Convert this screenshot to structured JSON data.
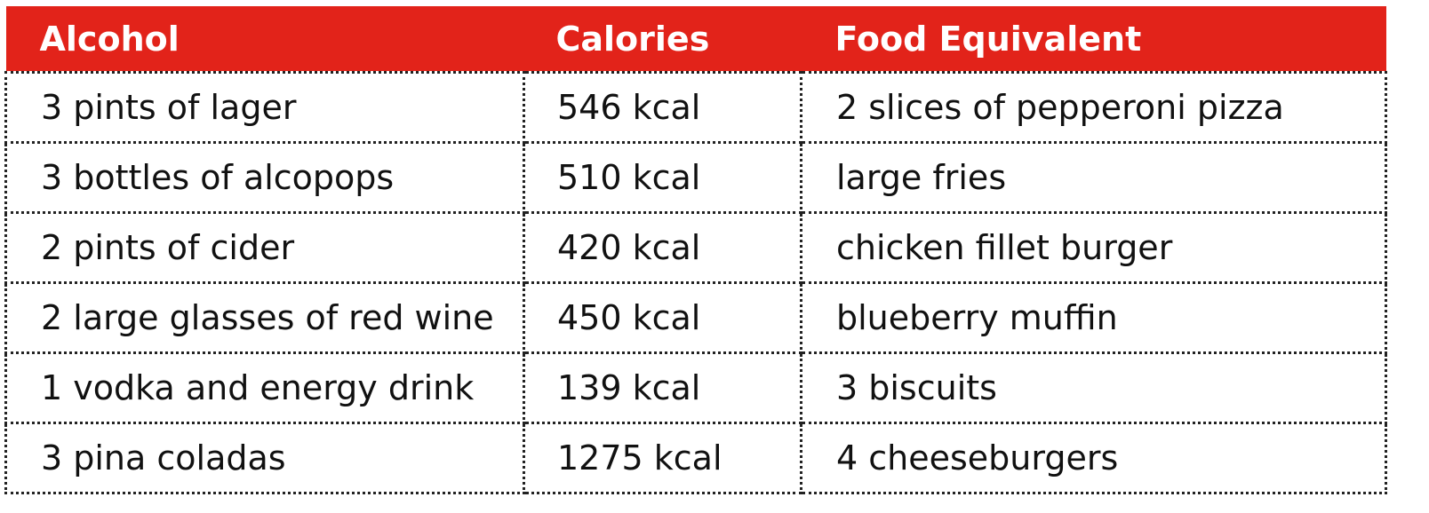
{
  "table": {
    "header": [
      "Alcohol",
      "Calories",
      "Food Equivalent"
    ],
    "rows": [
      [
        "3 pints of lager",
        "546 kcal",
        "2 slices of pepperoni pizza"
      ],
      [
        "3 bottles of alcopops",
        "510 kcal",
        "large fries"
      ],
      [
        "2 pints of cider",
        "420 kcal",
        "chicken fillet burger"
      ],
      [
        "2 large glasses of red wine",
        "450 kcal",
        "blueberry muffin"
      ],
      [
        "1 vodka and energy drink",
        "139 kcal",
        "3 biscuits"
      ],
      [
        "3 pina coladas",
        "1275 kcal",
        "4 cheeseburgers"
      ]
    ]
  }
}
